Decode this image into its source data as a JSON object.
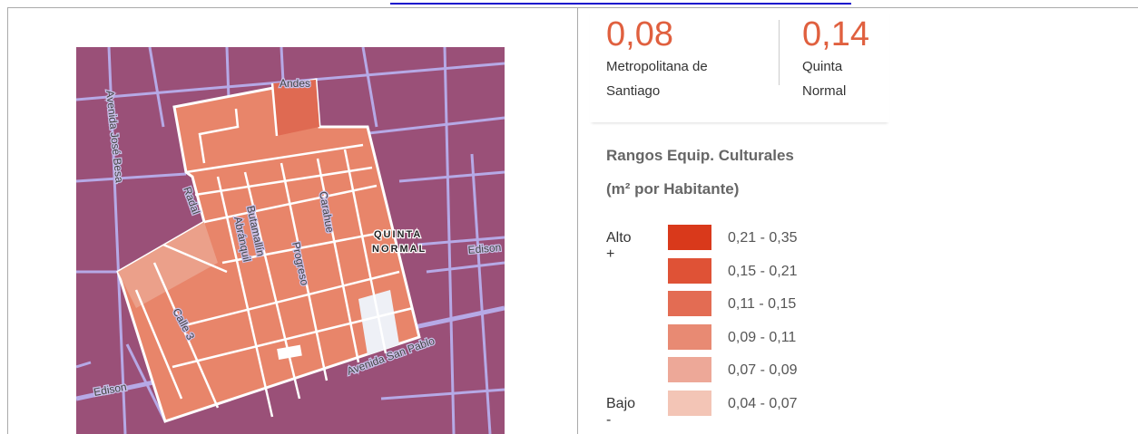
{
  "stats": [
    {
      "value": "0,08",
      "label": "Metropolitana de Santiago"
    },
    {
      "value": "0,14",
      "label": "Quinta Normal"
    }
  ],
  "legend": {
    "title": "Rangos Equip. Culturales",
    "subtitle": "(m² por Habitante)",
    "high_label": "Alto +",
    "low_label": "Bajo -",
    "items": [
      {
        "range": "0,21 - 0,35",
        "color": "#d9391b"
      },
      {
        "range": "0,15 - 0,21",
        "color": "#df5236"
      },
      {
        "range": "0,11 - 0,15",
        "color": "#e36c53"
      },
      {
        "range": "0,09 - 0,11",
        "color": "#e88a73"
      },
      {
        "range": "0,07 - 0,09",
        "color": "#eda898"
      },
      {
        "range": "0,04 - 0,07",
        "color": "#f3c5b6"
      }
    ]
  },
  "map": {
    "labels": [
      "Andes",
      "Avenida José Besa",
      "Radal",
      "Butamallín",
      "Abránquil",
      "Progreso",
      "Carahue",
      "QUINTA",
      "NORMAL",
      "Edison",
      "Edison",
      "Calle 3",
      "Avenida San Pablo"
    ]
  }
}
